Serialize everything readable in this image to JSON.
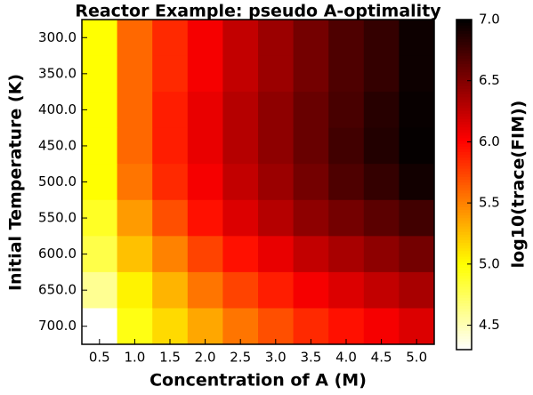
{
  "chart_data": {
    "type": "heatmap",
    "title": "Reactor Example: pseudo A-optimality",
    "x_label": "Concentration of A (M)",
    "y_label": "Initial Temperature (K)",
    "colorbar_label": "log10(trace(FIM))",
    "colormap": "hot_r",
    "x_categories": [
      "0.5",
      "1.0",
      "1.5",
      "2.0",
      "2.5",
      "3.0",
      "3.5",
      "4.0",
      "4.5",
      "5.0"
    ],
    "y_categories": [
      "300.0",
      "350.0",
      "400.0",
      "450.0",
      "500.0",
      "550.0",
      "600.0",
      "650.0",
      "700.0"
    ],
    "z": [
      [
        5.0,
        5.6,
        5.85,
        6.05,
        6.25,
        6.4,
        6.55,
        6.7,
        6.8,
        6.95
      ],
      [
        5.0,
        5.6,
        5.85,
        6.05,
        6.25,
        6.4,
        6.55,
        6.7,
        6.8,
        6.95
      ],
      [
        5.0,
        5.6,
        5.9,
        6.1,
        6.3,
        6.45,
        6.6,
        6.72,
        6.85,
        6.97
      ],
      [
        5.0,
        5.6,
        5.9,
        6.1,
        6.3,
        6.45,
        6.6,
        6.75,
        6.87,
        6.98
      ],
      [
        5.0,
        5.55,
        5.85,
        6.05,
        6.25,
        6.4,
        6.55,
        6.7,
        6.8,
        6.93
      ],
      [
        4.9,
        5.4,
        5.7,
        5.95,
        6.15,
        6.3,
        6.45,
        6.55,
        6.65,
        6.75
      ],
      [
        4.8,
        5.25,
        5.5,
        5.75,
        5.95,
        6.1,
        6.25,
        6.35,
        6.45,
        6.55
      ],
      [
        4.6,
        5.05,
        5.3,
        5.55,
        5.75,
        5.9,
        6.05,
        6.15,
        6.25,
        6.35
      ],
      [
        4.3,
        4.95,
        5.15,
        5.35,
        5.55,
        5.7,
        5.85,
        5.95,
        6.05,
        6.15
      ]
    ],
    "zlim": [
      4.3,
      7.0
    ],
    "zticks": [
      4.5,
      {
        "value": 5,
        "label": "5.0"
      },
      5.5,
      {
        "value": 6,
        "label": "6.0"
      },
      6.5,
      {
        "value": 7,
        "label": "7.0"
      }
    ]
  }
}
